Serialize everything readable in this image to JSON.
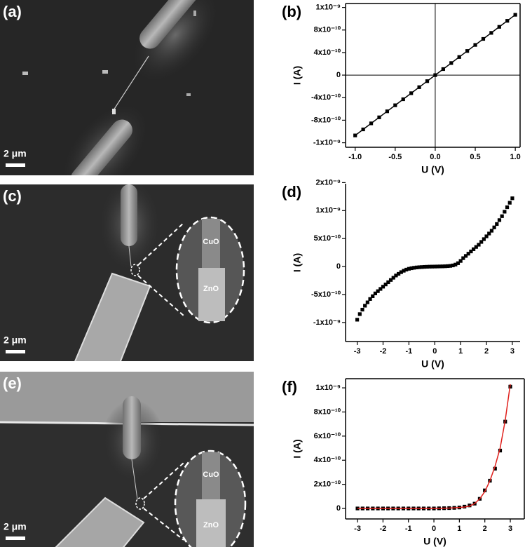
{
  "images": [
    {
      "label": "(a)",
      "scale": "2 μm"
    },
    {
      "label": "(c)",
      "scale": "2 μm",
      "inset": [
        "CuO",
        "ZnO"
      ]
    },
    {
      "label": "(e)",
      "scale": "2 μm",
      "inset": [
        "CuO",
        "ZnO"
      ]
    }
  ],
  "chart_data": [
    {
      "type": "scatter",
      "panel_label": "(b)",
      "x_label": "U (V)",
      "y_label": "I (A)",
      "frame": true,
      "zero_lines": true,
      "xlim": [
        -1.12,
        1.06
      ],
      "ylim": [
        -1.28e-09,
        1.27e-09
      ],
      "xticks": [
        {
          "value": -1,
          "label": "-1.0"
        },
        -0.5,
        {
          "value": 0,
          "label": "0.0"
        },
        0.5,
        {
          "value": 1,
          "label": "1.0"
        }
      ],
      "yticks": [
        {
          "value": -1.2e-09,
          "label": "-1x10⁻⁹"
        },
        {
          "value": -8e-10,
          "label": "-8x10⁻¹⁰"
        },
        {
          "value": -4e-10,
          "label": "-4x10⁻¹⁰"
        },
        0,
        {
          "value": 4e-10,
          "label": "4x10⁻¹⁰"
        },
        {
          "value": 8e-10,
          "label": "8x10⁻¹⁰"
        },
        {
          "value": 1.2e-09,
          "label": "1x10⁻⁹"
        }
      ],
      "x": [
        -1.0,
        -0.9,
        -0.8,
        -0.7,
        -0.6,
        -0.5,
        -0.4,
        -0.3,
        -0.2,
        -0.1,
        0,
        0.1,
        0.2,
        0.3,
        0.4,
        0.5,
        0.6,
        0.7,
        0.8,
        0.9,
        1.0
      ],
      "series": [
        {
          "color": "#000000",
          "marker": "square",
          "line": true,
          "values": [
            -1.07e-09,
            -9.63e-10,
            -8.56e-10,
            -7.49e-10,
            -6.42e-10,
            -5.35e-10,
            -4.28e-10,
            -3.21e-10,
            -2.14e-10,
            -1.07e-10,
            0,
            1.07e-10,
            2.14e-10,
            3.21e-10,
            4.28e-10,
            5.35e-10,
            6.42e-10,
            7.49e-10,
            8.56e-10,
            9.63e-10,
            1.07e-09
          ]
        }
      ]
    },
    {
      "type": "scatter",
      "panel_label": "(d)",
      "x_label": "U (V)",
      "y_label": "I (A)",
      "frame": false,
      "zero_lines": false,
      "xlim": [
        -3.45,
        3.3
      ],
      "ylim": [
        -1.34e-09,
        1.48e-09
      ],
      "xticks": [
        -3,
        -2,
        -1,
        0,
        1,
        2,
        3
      ],
      "yticks": [
        {
          "value": -1e-09,
          "label": "-1x10⁻⁹"
        },
        {
          "value": -5e-10,
          "label": "-5x10⁻¹⁰"
        },
        0,
        {
          "value": 5e-10,
          "label": "5x10⁻¹⁰"
        },
        {
          "value": 1e-09,
          "label": "1x10⁻⁹"
        },
        {
          "value": 1.5e-09,
          "label": "2x10⁻⁹"
        }
      ],
      "x": [
        -3.0,
        -2.9,
        -2.8,
        -2.7,
        -2.6,
        -2.5,
        -2.4,
        -2.3,
        -2.2,
        -2.1,
        -2.0,
        -1.9,
        -1.8,
        -1.7,
        -1.6,
        -1.5,
        -1.4,
        -1.3,
        -1.2,
        -1.1,
        -1.0,
        -0.9,
        -0.8,
        -0.7,
        -0.6,
        -0.5,
        -0.4,
        -0.3,
        -0.2,
        -0.1,
        0,
        0.1,
        0.2,
        0.3,
        0.4,
        0.5,
        0.6,
        0.7,
        0.8,
        0.9,
        1.0,
        1.1,
        1.2,
        1.3,
        1.4,
        1.5,
        1.6,
        1.7,
        1.8,
        1.9,
        2.0,
        2.1,
        2.2,
        2.3,
        2.4,
        2.5,
        2.6,
        2.7,
        2.8,
        2.9,
        3.0
      ],
      "series": [
        {
          "color": "#000000",
          "marker": "square",
          "line": false,
          "values": [
            -9.5e-10,
            -8.5e-10,
            -7.7e-10,
            -7e-10,
            -6.4e-10,
            -5.8e-10,
            -5.3e-10,
            -4.8e-10,
            -4.4e-10,
            -4e-10,
            -3.6e-10,
            -3.2e-10,
            -2.8e-10,
            -2.4e-10,
            -2e-10,
            -1.6e-10,
            -1.3e-10,
            -1e-10,
            -7.5e-11,
            -5.5e-11,
            -4e-11,
            -3e-11,
            -2.2e-11,
            -1.6e-11,
            -1.2e-11,
            -9e-12,
            -6e-12,
            -4e-12,
            -2e-12,
            -1e-12,
            0,
            1e-12,
            2e-12,
            3e-12,
            5e-12,
            8e-12,
            1.2e-11,
            2e-11,
            3.5e-11,
            6e-11,
            1e-10,
            1.5e-10,
            1.9e-10,
            2.3e-10,
            2.7e-10,
            3.1e-10,
            3.5e-10,
            3.9e-10,
            4.4e-10,
            4.9e-10,
            5.4e-10,
            5.9e-10,
            6.4e-10,
            7e-10,
            7.6e-10,
            8.3e-10,
            9e-10,
            9.8e-10,
            1.06e-09,
            1.14e-09,
            1.22e-09
          ]
        }
      ]
    },
    {
      "type": "scatter",
      "panel_label": "(f)",
      "x_label": "U (V)",
      "y_label": "I (A)",
      "frame": true,
      "zero_lines": false,
      "xlim": [
        -3.47,
        3.55
      ],
      "ylim": [
        -8.7e-11,
        1.076e-09
      ],
      "xticks": [
        -3,
        -2,
        -1,
        0,
        1,
        2,
        3
      ],
      "yticks": [
        0,
        {
          "value": 2e-10,
          "label": "2x10⁻¹⁰"
        },
        {
          "value": 4e-10,
          "label": "4x10⁻¹⁰"
        },
        {
          "value": 6e-10,
          "label": "6x10⁻¹⁰"
        },
        {
          "value": 8e-10,
          "label": "8x10⁻¹⁰"
        },
        {
          "value": 1e-09,
          "label": "1x10⁻⁹"
        }
      ],
      "x": [
        -3.0,
        -2.8,
        -2.6,
        -2.4,
        -2.2,
        -2.0,
        -1.8,
        -1.6,
        -1.4,
        -1.2,
        -1.0,
        -0.8,
        -0.6,
        -0.4,
        -0.2,
        0,
        0.2,
        0.4,
        0.6,
        0.8,
        1.0,
        1.2,
        1.4,
        1.6,
        1.8,
        2.0,
        2.2,
        2.4,
        2.6,
        2.8,
        3.0
      ],
      "series": [
        {
          "color": "#000000",
          "marker": "square",
          "line": false,
          "values": [
            0,
            0,
            0,
            0,
            0,
            0,
            0,
            0,
            0,
            0,
            0,
            0,
            0,
            0,
            0,
            0,
            1e-12,
            2e-12,
            3e-12,
            5e-12,
            8e-12,
            1.5e-11,
            2.5e-11,
            4e-11,
            8e-11,
            1.5e-10,
            2.3e-10,
            3.3e-10,
            4.8e-10,
            7.2e-10,
            1.01e-09
          ]
        },
        {
          "color": "#e0201c",
          "marker": "none",
          "line": true,
          "values": [
            0,
            0,
            0,
            0,
            0,
            0,
            0,
            0,
            0,
            0,
            0,
            0,
            0,
            0,
            0,
            0,
            1e-12,
            2e-12,
            3e-12,
            5e-12,
            8e-12,
            1.2e-11,
            2e-11,
            4e-11,
            8e-11,
            1.4e-10,
            2.3e-10,
            3.5e-10,
            5e-10,
            7.3e-10,
            1.03e-09
          ]
        }
      ]
    }
  ]
}
